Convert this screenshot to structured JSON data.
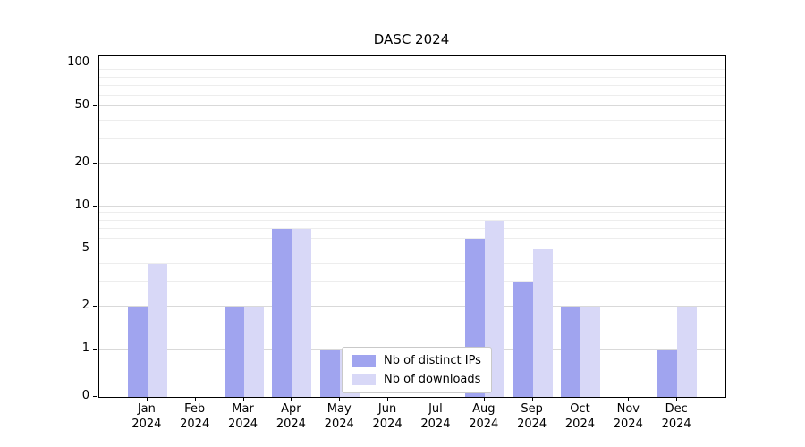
{
  "chart_data": {
    "type": "bar",
    "title": "DASC 2024",
    "months": [
      "Jan",
      "Feb",
      "Mar",
      "Apr",
      "May",
      "Jun",
      "Jul",
      "Aug",
      "Sep",
      "Oct",
      "Nov",
      "Dec"
    ],
    "year": "2024",
    "series": [
      {
        "name": "Nb of distinct IPs",
        "color": "#a0a4ef",
        "values": [
          2,
          0,
          2,
          7,
          1,
          0,
          0,
          6,
          3,
          2,
          0,
          1
        ]
      },
      {
        "name": "Nb of downloads",
        "color": "#d8d8f7",
        "values": [
          4,
          0,
          2,
          7,
          1,
          0,
          0,
          8,
          5,
          2,
          0,
          2
        ]
      }
    ],
    "y_scale": "symlog",
    "y_ticks": [
      0,
      1,
      2,
      5,
      10,
      20,
      50,
      100
    ],
    "y_minor_ticks": [
      3,
      4,
      6,
      7,
      8,
      9,
      30,
      40,
      60,
      70,
      80,
      90
    ],
    "ylim": [
      0,
      100
    ],
    "grid": "on",
    "legend_position": "lower center"
  }
}
